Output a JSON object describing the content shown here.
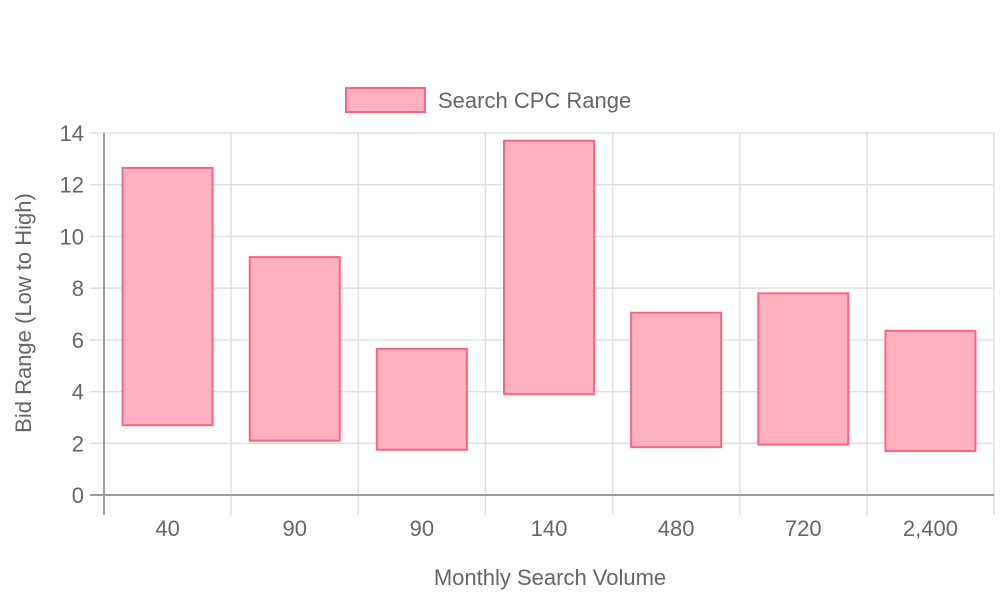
{
  "chart_data": {
    "type": "bar",
    "variant": "floating-range",
    "categories": [
      "40",
      "90",
      "90",
      "140",
      "480",
      "720",
      "2,400"
    ],
    "series": [
      {
        "name": "Search CPC Range",
        "ranges": [
          [
            2.7,
            12.65
          ],
          [
            2.1,
            9.2
          ],
          [
            1.75,
            5.65
          ],
          [
            3.9,
            13.7
          ],
          [
            1.85,
            7.05
          ],
          [
            1.95,
            7.8
          ],
          [
            1.7,
            6.35
          ]
        ],
        "fill_color": "#ffb1c1",
        "border_color": "#ff6384"
      }
    ],
    "xlabel": "Monthly Search Volume",
    "ylabel": "Bid Range (Low to High)",
    "ylim": [
      0,
      14
    ],
    "yticks": [
      "0",
      "2",
      "4",
      "6",
      "8",
      "10",
      "12",
      "14"
    ],
    "grid": true,
    "legend_position": "top"
  }
}
